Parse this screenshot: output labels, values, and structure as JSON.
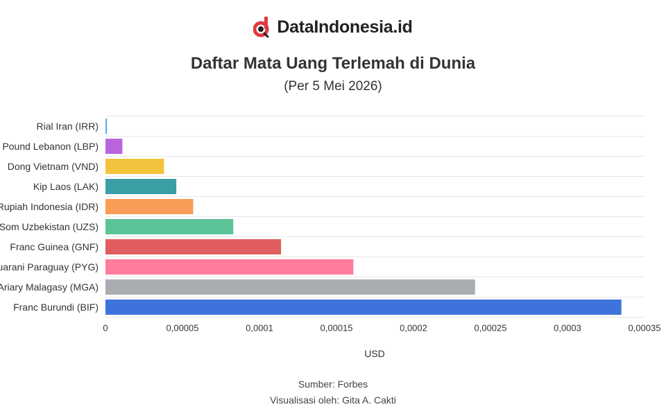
{
  "brand": {
    "name": "DataIndonesia.id",
    "logo_icon": "dataindonesia-logo-icon",
    "logo_color": "#e03a3e"
  },
  "chart_data": {
    "type": "bar",
    "orientation": "horizontal",
    "title": "Daftar Mata Uang Terlemah di Dunia",
    "subtitle": "(Per 5 Mei 2026)",
    "xlabel": "USD",
    "ylabel": "",
    "xlim": [
      0,
      0.00035
    ],
    "x_ticks": [
      "0",
      "0,00005",
      "0,0001",
      "0,00015",
      "0,0002",
      "0,00025",
      "0,0003",
      "0,00035"
    ],
    "grid": true,
    "categories": [
      "Rial Iran (IRR)",
      "Pound Lebanon (LBP)",
      "Dong Vietnam (VND)",
      "Kip Laos (LAK)",
      "Rupiah Indonesia (IDR)",
      "Som Uzbekistan (UZS)",
      "Franc Guinea (GNF)",
      "Guarani Paraguay (PYG)",
      "Ariary Malagasy (MGA)",
      "Franc Burundi (BIF)"
    ],
    "values": [
      1e-06,
      1.1e-05,
      3.8e-05,
      4.6e-05,
      5.7e-05,
      8.3e-05,
      0.000114,
      0.000161,
      0.00024,
      0.000335
    ],
    "colors": [
      "#5bb0ec",
      "#b966dd",
      "#f2c43d",
      "#3a9ea5",
      "#f99d58",
      "#5bc496",
      "#df5d5d",
      "#ff7c9b",
      "#a9adb2",
      "#3f73dc"
    ]
  },
  "footer": {
    "source": "Sumber: Forbes",
    "visualization": "Visualisasi oleh: Gita A. Cakti"
  }
}
